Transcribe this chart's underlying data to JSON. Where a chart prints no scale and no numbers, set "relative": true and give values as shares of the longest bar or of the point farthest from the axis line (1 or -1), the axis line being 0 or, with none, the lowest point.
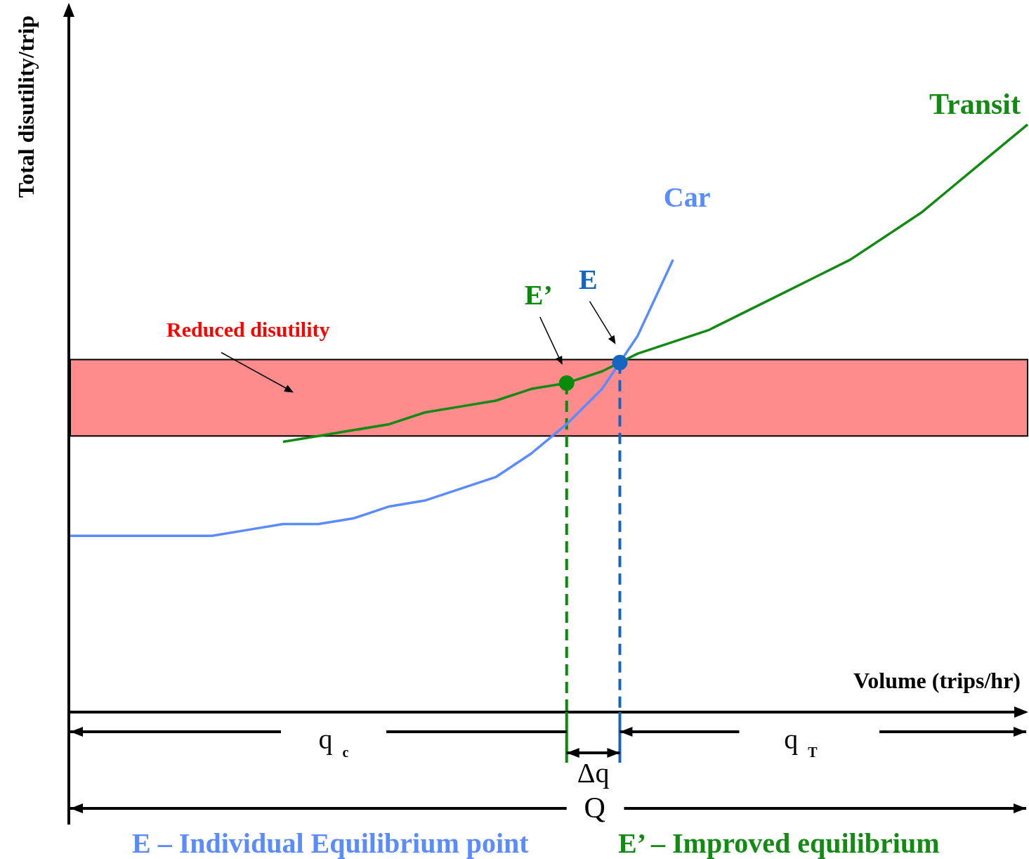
{
  "chart_data": {
    "type": "line",
    "relative": true,
    "xlabel": "Volume (trips/hr)",
    "ylabel": "Total disutility/trip",
    "legend": false,
    "marker": "none",
    "categories": [
      null,
      null,
      null,
      null,
      null,
      null,
      null,
      null,
      null,
      null,
      null,
      null,
      null,
      null,
      null,
      null,
      null,
      null,
      null,
      null,
      null,
      null,
      null,
      null,
      null,
      null,
      null,
      null
    ],
    "series": [
      {
        "name": "Car",
        "color": "#5a8cff",
        "values": [
          0.3,
          0.3,
          0.3,
          0.3,
          0.3,
          0.31,
          0.32,
          0.32,
          0.33,
          0.35,
          0.36,
          0.38,
          0.4,
          0.44,
          0.49,
          0.55,
          0.64,
          0.77,
          null,
          null,
          null,
          null,
          null,
          null,
          null,
          null,
          null,
          null
        ]
      },
      {
        "name": "Transit",
        "color": "#138a13",
        "values": [
          null,
          null,
          null,
          null,
          null,
          null,
          0.46,
          0.47,
          0.48,
          0.49,
          0.51,
          0.52,
          0.53,
          0.55,
          0.56,
          0.58,
          0.61,
          0.63,
          0.65,
          0.68,
          0.71,
          0.74,
          0.77,
          0.81,
          0.85,
          0.9,
          0.95,
          1.0
        ]
      }
    ],
    "bands": [
      {
        "axis": "y",
        "from": 0.47,
        "to": 0.6,
        "label": "Reduced disutility",
        "color": "#ff0000"
      }
    ],
    "annotations": [
      {
        "text": "E’",
        "y": 0.56
      },
      "E",
      "q$_{c}$",
      "Δq",
      "q$_{T}$",
      "Q",
      "E – Individual Equilibrium point",
      "E’ – Improved equilibrium"
    ]
  }
}
